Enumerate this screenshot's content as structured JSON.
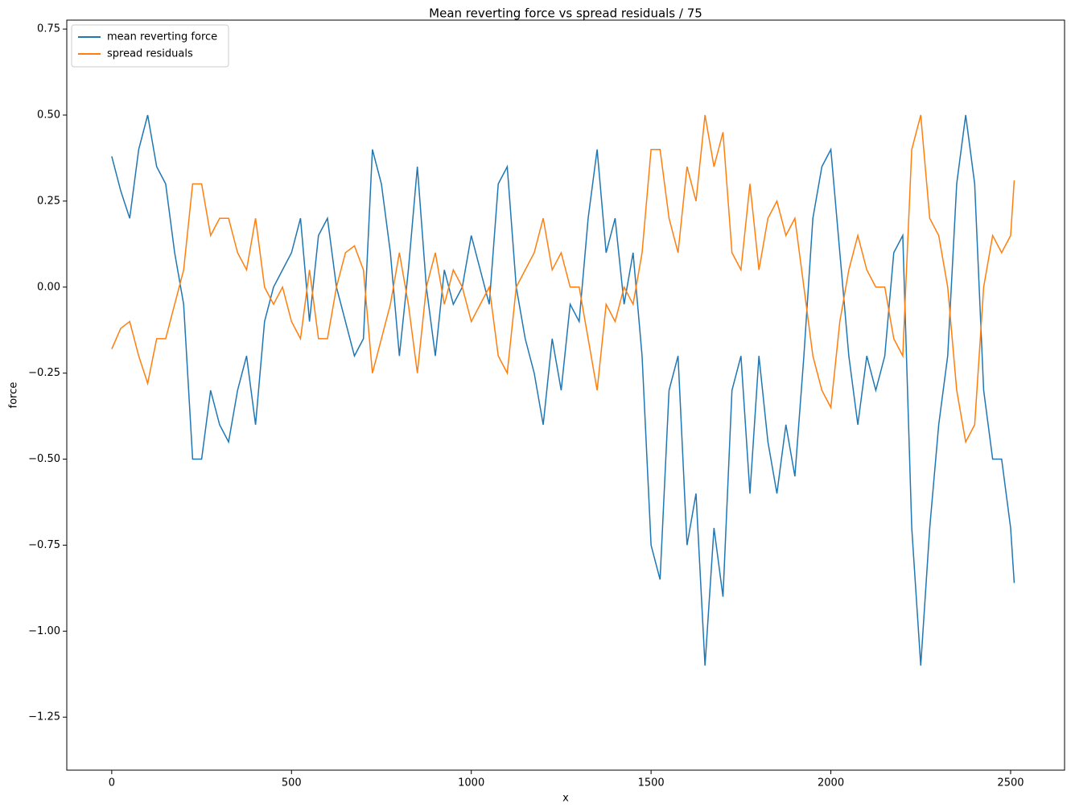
{
  "chart_data": {
    "type": "line",
    "title": "Mean reverting force vs spread residuals / 75",
    "x_label": "x",
    "y_label": "force",
    "x": [
      0,
      25,
      50,
      75,
      100,
      125,
      150,
      175,
      200,
      225,
      250,
      275,
      300,
      325,
      350,
      375,
      400,
      425,
      450,
      475,
      500,
      525,
      550,
      575,
      600,
      625,
      650,
      675,
      700,
      725,
      750,
      775,
      800,
      825,
      850,
      875,
      900,
      925,
      950,
      975,
      1000,
      1025,
      1050,
      1075,
      1100,
      1125,
      1150,
      1175,
      1200,
      1225,
      1250,
      1275,
      1300,
      1325,
      1350,
      1375,
      1400,
      1425,
      1450,
      1475,
      1500,
      1525,
      1550,
      1575,
      1600,
      1625,
      1650,
      1675,
      1700,
      1725,
      1750,
      1775,
      1800,
      1825,
      1850,
      1875,
      1900,
      1925,
      1950,
      1975,
      2000,
      2025,
      2050,
      2075,
      2100,
      2125,
      2150,
      2175,
      2200,
      2225,
      2250,
      2275,
      2300,
      2325,
      2350,
      2375,
      2400,
      2425,
      2450,
      2475,
      2500,
      2510
    ],
    "series": [
      {
        "name": "mean reverting force",
        "color": "#1f77b4",
        "values": [
          0.38,
          0.28,
          0.2,
          0.4,
          0.5,
          0.35,
          0.3,
          0.1,
          -0.05,
          -0.5,
          -0.5,
          -0.3,
          -0.4,
          -0.45,
          -0.3,
          -0.2,
          -0.4,
          -0.1,
          0.0,
          0.05,
          0.1,
          0.2,
          -0.1,
          0.15,
          0.2,
          0.0,
          -0.1,
          -0.2,
          -0.15,
          0.4,
          0.3,
          0.1,
          -0.2,
          0.05,
          0.35,
          0.0,
          -0.2,
          0.05,
          -0.05,
          0.0,
          0.15,
          0.05,
          -0.05,
          0.3,
          0.35,
          0.0,
          -0.15,
          -0.25,
          -0.4,
          -0.15,
          -0.3,
          -0.05,
          -0.1,
          0.2,
          0.4,
          0.1,
          0.2,
          -0.05,
          0.1,
          -0.2,
          -0.75,
          -0.85,
          -0.3,
          -0.2,
          -0.75,
          -0.6,
          -1.1,
          -0.7,
          -0.9,
          -0.3,
          -0.2,
          -0.6,
          -0.2,
          -0.45,
          -0.6,
          -0.4,
          -0.55,
          -0.2,
          0.2,
          0.35,
          0.4,
          0.1,
          -0.2,
          -0.4,
          -0.2,
          -0.3,
          -0.2,
          0.1,
          0.15,
          -0.7,
          -1.1,
          -0.7,
          -0.4,
          -0.2,
          0.3,
          0.5,
          0.3,
          -0.3,
          -0.5,
          -0.5,
          -0.7,
          -0.86
        ]
      },
      {
        "name": "spread residuals",
        "color": "#ff7f0e",
        "values": [
          -0.18,
          -0.12,
          -0.1,
          -0.2,
          -0.28,
          -0.15,
          -0.15,
          -0.05,
          0.05,
          0.3,
          0.3,
          0.15,
          0.2,
          0.2,
          0.1,
          0.05,
          0.2,
          0.0,
          -0.05,
          0.0,
          -0.1,
          -0.15,
          0.05,
          -0.15,
          -0.15,
          0.0,
          0.1,
          0.12,
          0.05,
          -0.25,
          -0.15,
          -0.05,
          0.1,
          -0.05,
          -0.25,
          0.0,
          0.1,
          -0.05,
          0.05,
          0.0,
          -0.1,
          -0.05,
          0.0,
          -0.2,
          -0.25,
          0.0,
          0.05,
          0.1,
          0.2,
          0.05,
          0.1,
          0.0,
          0.0,
          -0.15,
          -0.3,
          -0.05,
          -0.1,
          0.0,
          -0.05,
          0.1,
          0.4,
          0.4,
          0.2,
          0.1,
          0.35,
          0.25,
          0.5,
          0.35,
          0.45,
          0.1,
          0.05,
          0.3,
          0.05,
          0.2,
          0.25,
          0.15,
          0.2,
          0.0,
          -0.2,
          -0.3,
          -0.35,
          -0.1,
          0.05,
          0.15,
          0.05,
          0.0,
          0.0,
          -0.15,
          -0.2,
          0.4,
          0.5,
          0.2,
          0.15,
          0.0,
          -0.3,
          -0.45,
          -0.4,
          0.0,
          0.15,
          0.1,
          0.15,
          0.31
        ]
      }
    ],
    "xlim": [
      -125,
      2650
    ],
    "ylim": [
      -1.404,
      0.776
    ],
    "xticks": [
      0,
      500,
      1000,
      1500,
      2000,
      2500
    ],
    "yticks": [
      {
        "value": -1.25,
        "label": "−1.25"
      },
      {
        "value": -1.0,
        "label": "−1.00"
      },
      {
        "value": -0.75,
        "label": "−0.75"
      },
      {
        "value": -0.5,
        "label": "−0.50"
      },
      {
        "value": -0.25,
        "label": "−0.25"
      },
      {
        "value": 0,
        "label": "0.00"
      },
      {
        "value": 0.25,
        "label": "0.25"
      },
      {
        "value": 0.5,
        "label": "0.50"
      },
      {
        "value": 0.75,
        "label": "0.75"
      }
    ],
    "grid": false,
    "legend": "upper-left"
  }
}
